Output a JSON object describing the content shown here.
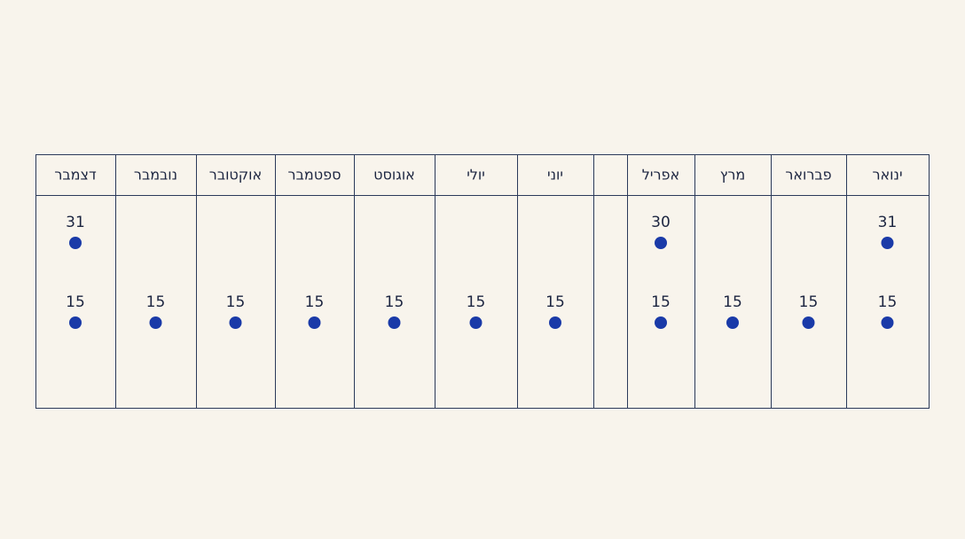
{
  "columns": [
    {
      "header": "ינואר",
      "end": 31,
      "mid": 15
    },
    {
      "header": "פברואר",
      "end": null,
      "mid": 15
    },
    {
      "header": "מרץ",
      "end": null,
      "mid": 15
    },
    {
      "header": "אפריל",
      "end": 30,
      "mid": 15
    },
    {
      "header": null,
      "end": null,
      "mid": null
    },
    {
      "header": "יוני",
      "end": null,
      "mid": 15
    },
    {
      "header": "יולי",
      "end": null,
      "mid": 15
    },
    {
      "header": "אוגוסט",
      "end": null,
      "mid": 15
    },
    {
      "header": "ספטמבר",
      "end": null,
      "mid": 15
    },
    {
      "header": "אוקטובר",
      "end": null,
      "mid": 15
    },
    {
      "header": "נובמבר",
      "end": null,
      "mid": 15
    },
    {
      "header": "דצמבר",
      "end": 31,
      "mid": 15
    }
  ]
}
